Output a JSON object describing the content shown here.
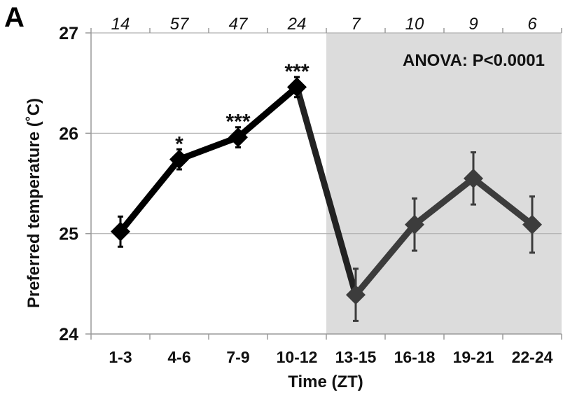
{
  "panel_label": "A",
  "chart_data": {
    "type": "line",
    "title": "",
    "xlabel": "Time (ZT)",
    "ylabel": "Preferred temperature (˚C)",
    "ylim": [
      24,
      27
    ],
    "yticks": [
      "24",
      "25",
      "26",
      "27"
    ],
    "categories": [
      "1-3",
      "4-6",
      "7-9",
      "10-12",
      "13-15",
      "16-18",
      "19-21",
      "22-24"
    ],
    "n_labels": [
      "14",
      "57",
      "47",
      "24",
      "7",
      "10",
      "9",
      "6"
    ],
    "grid": "horizontal",
    "shaded_region": {
      "from_category": "13-15",
      "to_category": "22-24",
      "color": "#dcdcdc"
    },
    "annotation": "ANOVA: P<0.0001",
    "significance": [
      "",
      "*",
      "***",
      "***",
      "",
      "",
      "",
      ""
    ],
    "values": [
      25.02,
      25.74,
      25.96,
      26.46,
      24.39,
      25.09,
      25.55,
      25.09
    ],
    "errors": [
      0.15,
      0.1,
      0.1,
      0.1,
      0.26,
      0.26,
      0.26,
      0.28
    ],
    "colors": {
      "light_phase": "#000000",
      "dark_phase": "#3c3c3c",
      "grid": "#b0b0b0",
      "axis": "#9a9a9a"
    }
  }
}
